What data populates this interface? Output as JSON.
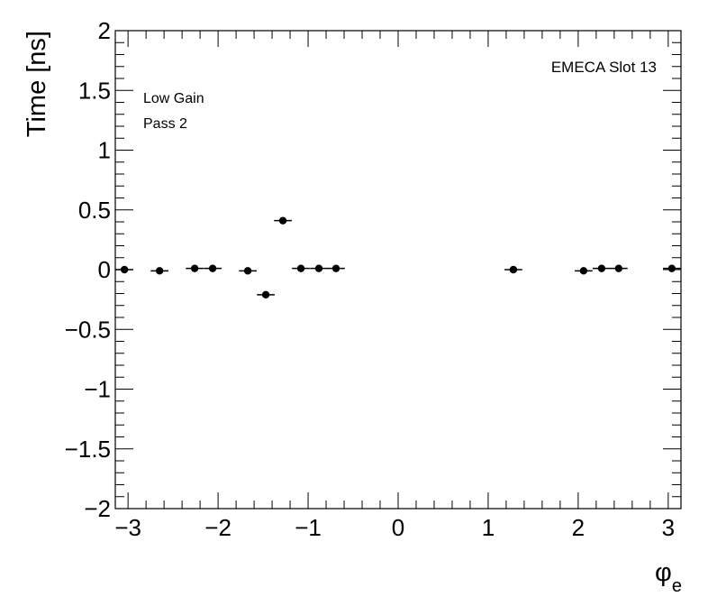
{
  "chart_data": {
    "type": "scatter",
    "title": "",
    "xlabel_symbol": "φ",
    "xlabel_subscript": "e",
    "ylabel": "Time [ns]",
    "xlim": [
      -3.1416,
      3.1416
    ],
    "ylim": [
      -2,
      2
    ],
    "x_ticks": [
      -3,
      -2,
      -1,
      0,
      1,
      2,
      3
    ],
    "x_tick_labels": [
      "−3",
      "−2",
      "−1",
      "0",
      "1",
      "2",
      "3"
    ],
    "y_ticks": [
      -2,
      -1.5,
      -1,
      -0.5,
      0,
      0.5,
      1,
      1.5,
      2
    ],
    "y_tick_labels": [
      "−2",
      "−1.5",
      "−1",
      "−0.5",
      "0",
      "0.5",
      "1",
      "1.5",
      "2"
    ],
    "grid": false,
    "annotations": {
      "top_right": "EMECA Slot 13",
      "top_left_line1": "Low Gain",
      "top_left_line2": "Pass 2"
    },
    "bin_half_width": 0.0982,
    "points": [
      {
        "x": -3.04,
        "y": 0.0
      },
      {
        "x": -2.65,
        "y": -0.01
      },
      {
        "x": -2.26,
        "y": 0.01
      },
      {
        "x": -2.06,
        "y": 0.01
      },
      {
        "x": -1.67,
        "y": -0.01
      },
      {
        "x": -1.47,
        "y": -0.21
      },
      {
        "x": -1.28,
        "y": 0.41
      },
      {
        "x": -1.08,
        "y": 0.01
      },
      {
        "x": -0.88,
        "y": 0.01
      },
      {
        "x": -0.69,
        "y": 0.01
      },
      {
        "x": 1.28,
        "y": 0.0
      },
      {
        "x": 2.06,
        "y": -0.01
      },
      {
        "x": 2.26,
        "y": 0.01
      },
      {
        "x": 2.45,
        "y": 0.01
      },
      {
        "x": 3.04,
        "y": 0.01
      }
    ]
  }
}
